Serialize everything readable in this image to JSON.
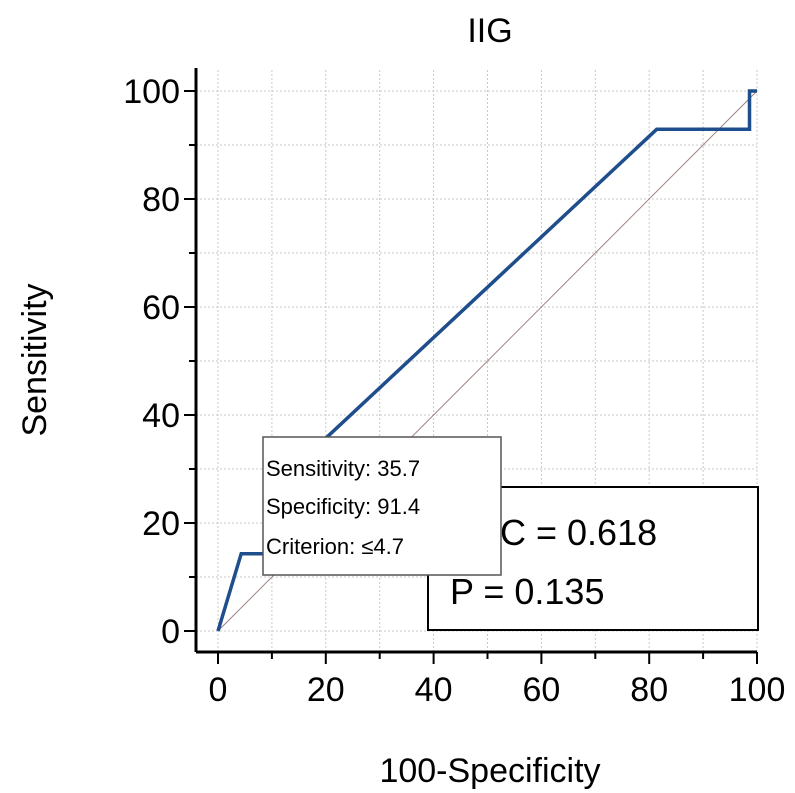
{
  "chart_data": {
    "type": "line",
    "title": "IIG",
    "xlabel": "100-Specificity",
    "ylabel": "Sensitivity",
    "xlim": [
      0,
      100
    ],
    "ylim": [
      0,
      100
    ],
    "x_ticks": [
      "0",
      "20",
      "40",
      "60",
      "80",
      "100"
    ],
    "y_ticks": [
      "0",
      "20",
      "40",
      "60",
      "80",
      "100"
    ],
    "grid": true,
    "series": [
      {
        "color": "#1f4e8c",
        "x": [
          0,
          4.3,
          4.3,
          8.6,
          8.6,
          20,
          81.4,
          98.6,
          98.6,
          100
        ],
        "y": [
          0,
          14.3,
          14.3,
          14.3,
          35.7,
          35.7,
          92.9,
          92.9,
          100,
          100
        ]
      }
    ],
    "reference_line": {
      "x": [
        0,
        100
      ],
      "y": [
        0,
        100
      ]
    },
    "annotations": {
      "auc": [
        "AUC = 0.618",
        "P = 0.135"
      ],
      "tooltip": [
        "Sensitivity: 35.7",
        "Specificity: 91.4",
        "Criterion: ≤4.7"
      ]
    }
  }
}
